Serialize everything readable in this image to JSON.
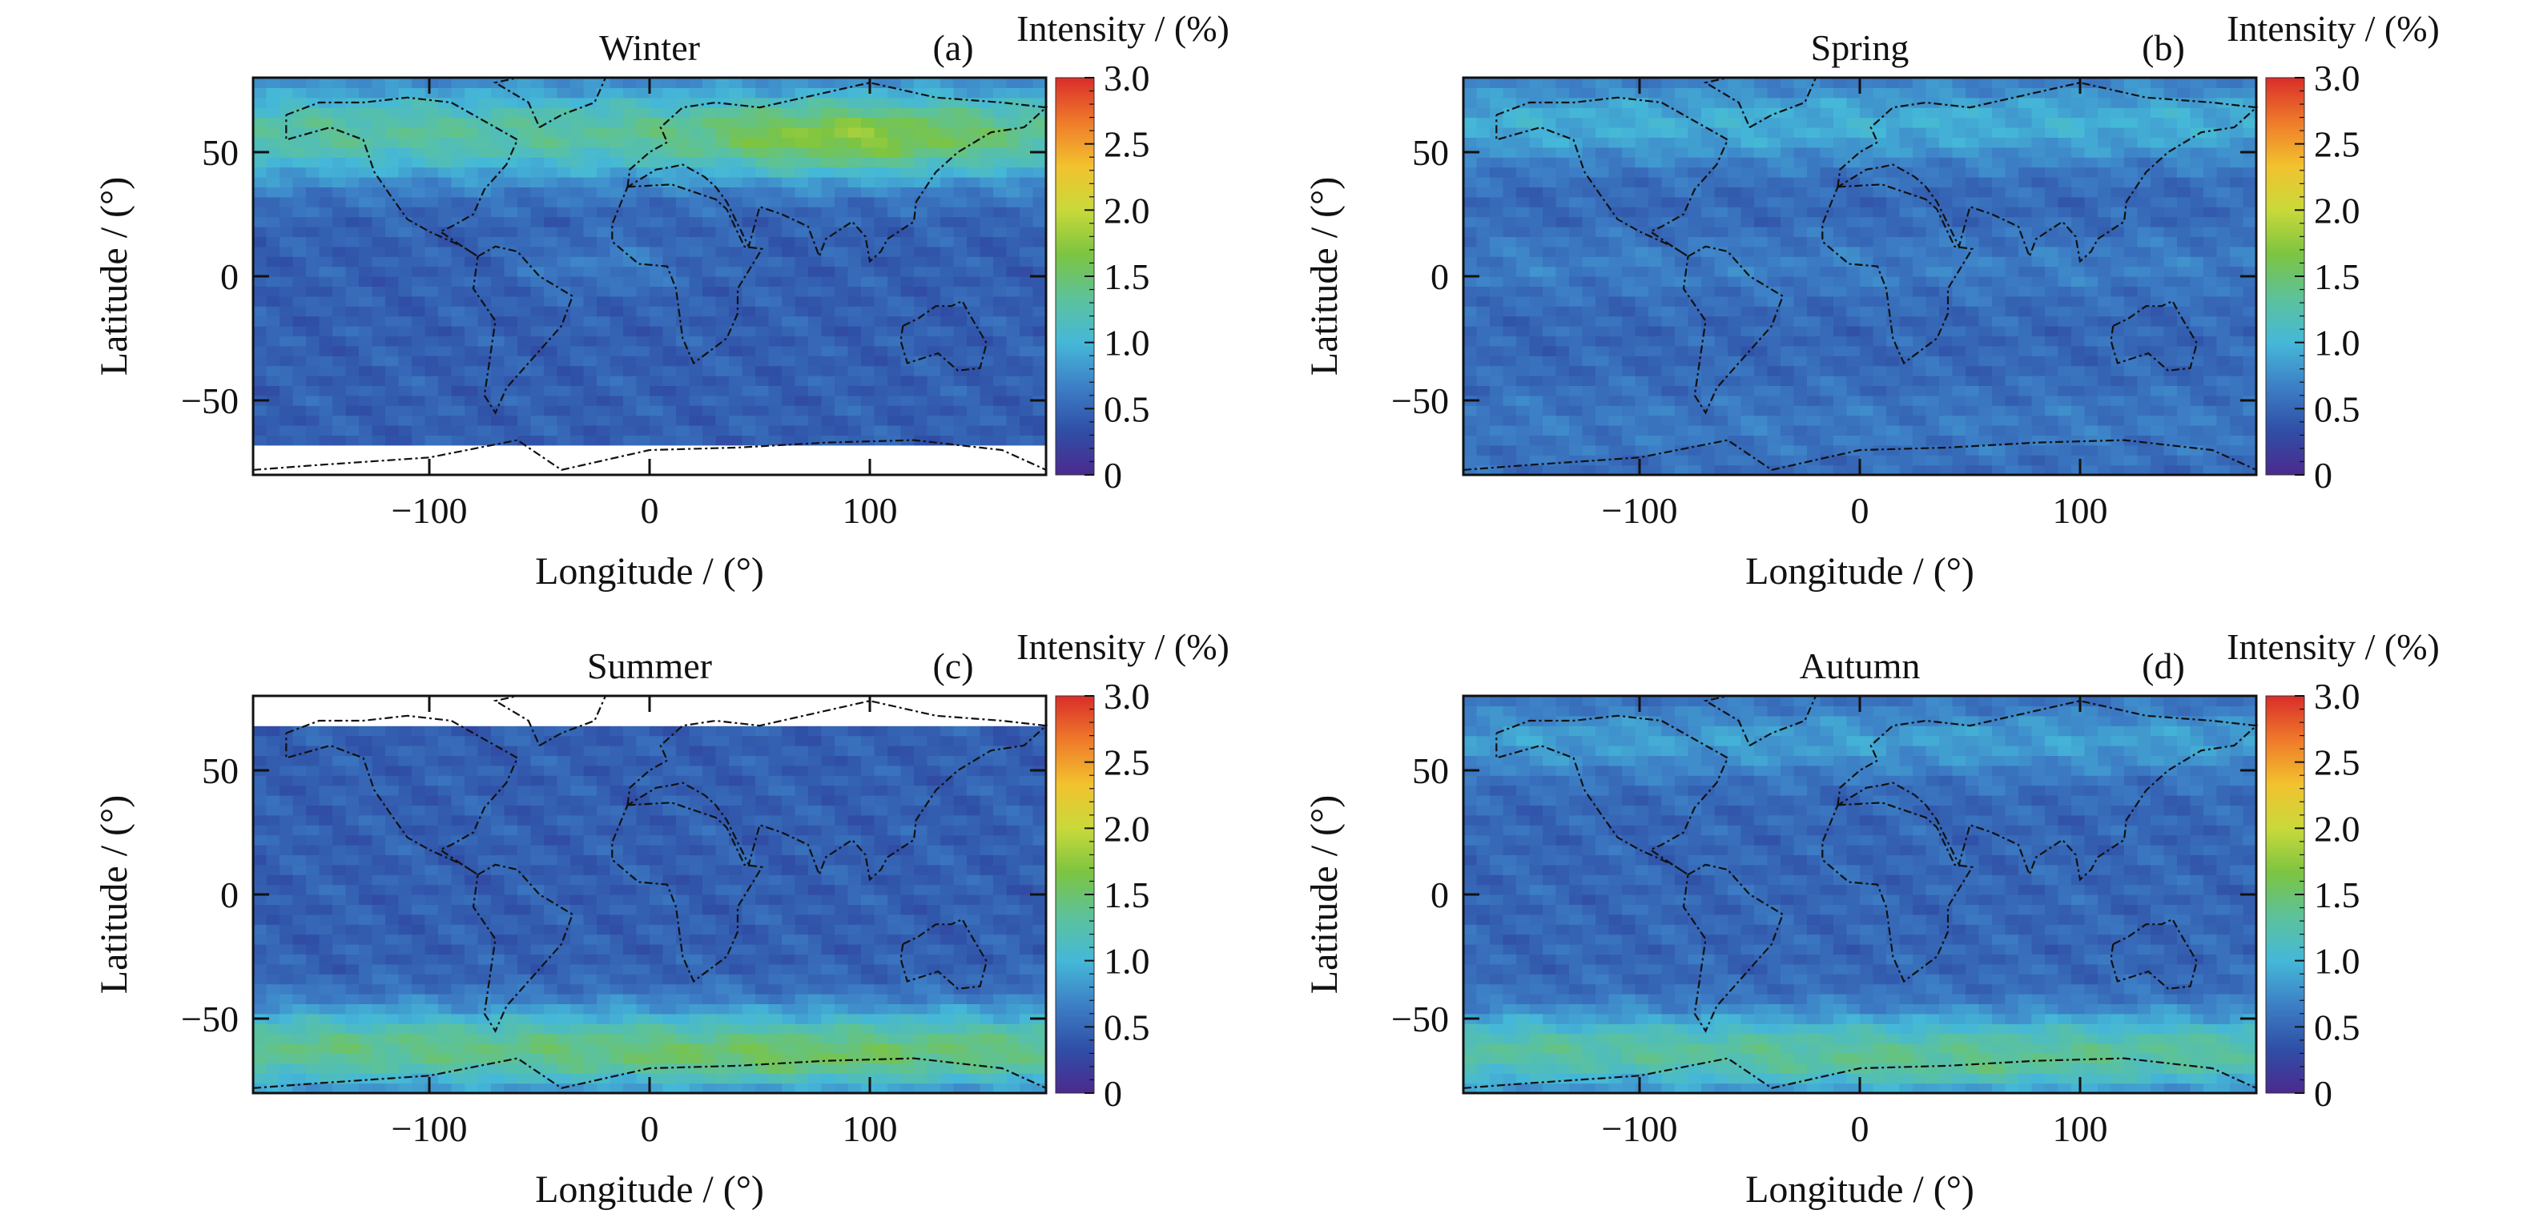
{
  "figure": {
    "colorbar": {
      "label": "Intensity / (%)",
      "ticks": [
        "3.0",
        "2.5",
        "2.0",
        "1.5",
        "1.0",
        "0.5",
        "0"
      ],
      "range": [
        0,
        3.0
      ],
      "colormap": [
        "#4b2a8f",
        "#2f4fa6",
        "#3d7fc6",
        "#45b8d8",
        "#5cc29a",
        "#7cc441",
        "#c9d93a",
        "#f2c22f",
        "#ef7a2a",
        "#d92d2a"
      ]
    },
    "shared": {
      "xlabel": "Longitude / (°)",
      "ylabel": "Latitude / (°)",
      "xticks": [
        "−100",
        "0",
        "100"
      ],
      "yticks": [
        "50",
        "0",
        "−50"
      ]
    }
  },
  "chart_data": [
    {
      "type": "heatmap",
      "title": "Winter",
      "panel_label": "(a)",
      "xlabel": "Longitude / (°)",
      "ylabel": "Latitude / (°)",
      "xlim": [
        -180,
        180
      ],
      "ylim": [
        -80,
        80
      ],
      "xticks": [
        -100,
        0,
        100
      ],
      "yticks": [
        50,
        0,
        -50
      ],
      "colorbar_label": "Intensity / (%)",
      "colorbar_range": [
        0,
        3.0
      ],
      "description": "Elevated intensity (~1.2-1.8%) over northern mid/high latitudes, peak ~1.8% over Siberia; low (~0.3-0.6%) elsewhere; no data south of ~-68°",
      "no_data_lat": [
        -80,
        -68
      ]
    },
    {
      "type": "heatmap",
      "title": "Spring",
      "panel_label": "(b)",
      "xlabel": "Longitude / (°)",
      "ylabel": "Latitude / (°)",
      "xlim": [
        -180,
        180
      ],
      "ylim": [
        -80,
        80
      ],
      "xticks": [
        -100,
        0,
        100
      ],
      "yticks": [
        50,
        0,
        -50
      ],
      "colorbar_label": "Intensity / (%)",
      "colorbar_range": [
        0,
        3.0
      ],
      "description": "Moderate intensity (~1.0%) at northern high latitudes, mostly low (~0.4-0.7%) elsewhere"
    },
    {
      "type": "heatmap",
      "title": "Summer",
      "panel_label": "(c)",
      "xlabel": "Longitude / (°)",
      "ylabel": "Latitude / (°)",
      "xlim": [
        -180,
        180
      ],
      "ylim": [
        -80,
        80
      ],
      "xticks": [
        -100,
        0,
        100
      ],
      "yticks": [
        50,
        0,
        -50
      ],
      "colorbar_label": "Intensity / (%)",
      "colorbar_range": [
        0,
        3.0
      ],
      "description": "Elevated intensity (~1.2-1.7%) over southern high latitudes; low (~0.4%) elsewhere; no data north of ~68°",
      "no_data_lat": [
        68,
        80
      ]
    },
    {
      "type": "heatmap",
      "title": "Autumn",
      "panel_label": "(d)",
      "xlabel": "Longitude / (°)",
      "ylabel": "Latitude / (°)",
      "xlim": [
        -180,
        180
      ],
      "ylim": [
        -80,
        80
      ],
      "xticks": [
        -100,
        0,
        100
      ],
      "yticks": [
        50,
        0,
        -50
      ],
      "colorbar_label": "Intensity / (%)",
      "colorbar_range": [
        0,
        3.0
      ],
      "description": "Elevated intensity (~1.1-1.5%) over southern high latitudes, moderate (~0.9%) at northern high latitudes; low (~0.5%) at mid/low latitudes"
    }
  ]
}
